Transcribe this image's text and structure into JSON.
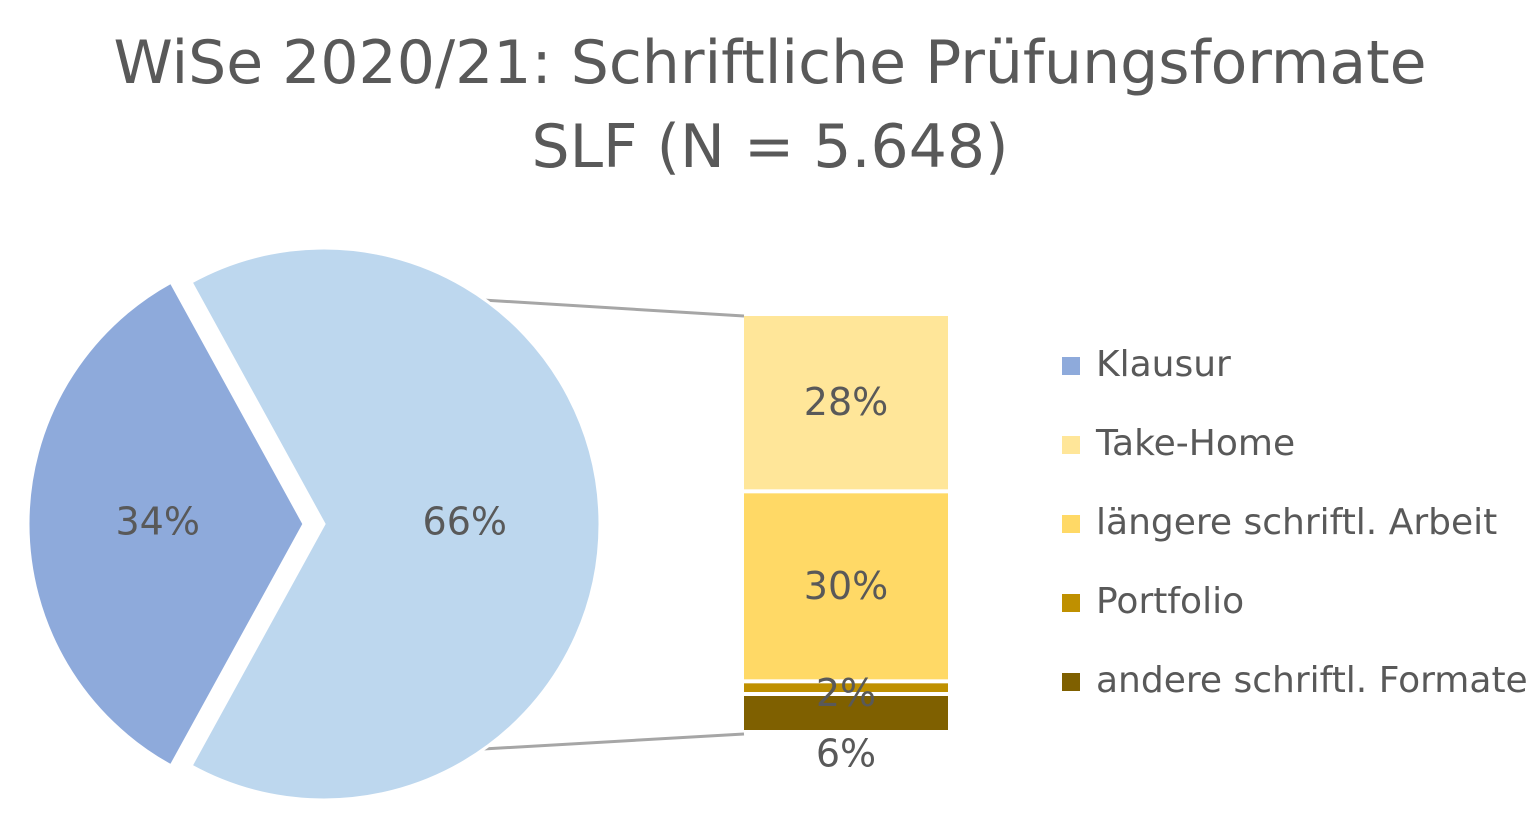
{
  "chart_data": {
    "type": "bar-of-pie",
    "title": "WiSe 2020/21: Schriftliche Prüfungsformate",
    "subtitle": "SLF (N = 5.648)",
    "pie": {
      "slices": [
        {
          "name": "Klausur",
          "value": 34,
          "label": "34%",
          "color": "#8EAADB"
        },
        {
          "name": "",
          "value": 66,
          "label": "66%",
          "color": "#BDD7EE"
        }
      ]
    },
    "bar": {
      "segments": [
        {
          "name": "Take-Home",
          "value": 28,
          "label": "28%",
          "color": "#FFE699"
        },
        {
          "name": "längere schriftl. Arbeit",
          "value": 30,
          "label": "30%",
          "color": "#FFD966"
        },
        {
          "name": "Portfolio",
          "value": 2,
          "label": "2%",
          "color": "#BF9000"
        },
        {
          "name": "andere schriftl. Formate",
          "value": 6,
          "label": "6%",
          "color": "#7F6000"
        }
      ]
    },
    "legend": [
      {
        "label": "Klausur",
        "color": "#8EAADB"
      },
      {
        "label": "Take-Home",
        "color": "#FFE699"
      },
      {
        "label": "längere schriftl. Arbeit",
        "color": "#FFD966"
      },
      {
        "label": "Portfolio",
        "color": "#BF9000"
      },
      {
        "label": "andere schriftl. Formate",
        "color": "#7F6000"
      }
    ],
    "legend_position": "right"
  }
}
